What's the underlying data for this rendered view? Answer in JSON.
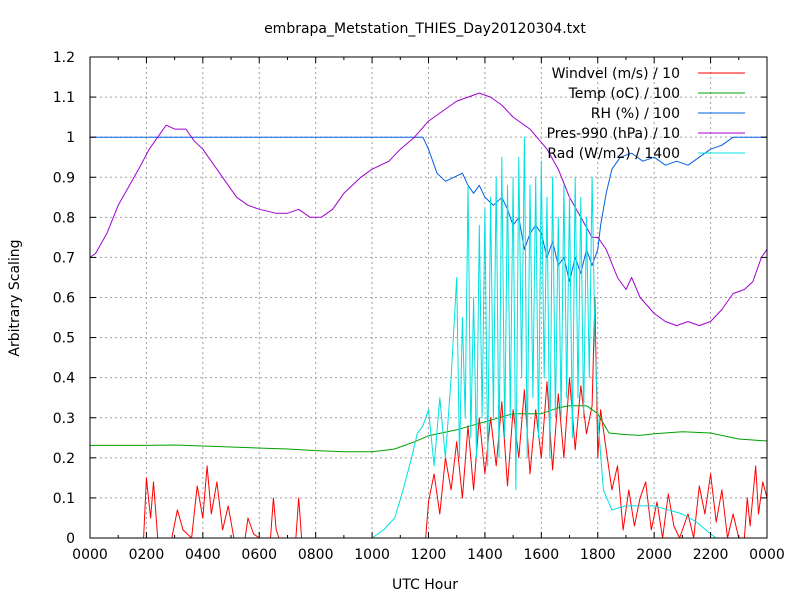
{
  "chart_data": {
    "type": "line",
    "title": "embrapa_Metstation_THIES_Day20120304.txt",
    "xlabel": "UTC Hour",
    "ylabel": "Arbitrary Scaling",
    "xlim": [
      0,
      2400
    ],
    "ylim": [
      0,
      1.2
    ],
    "x_tick_labels": [
      "0000",
      "0200",
      "0400",
      "0600",
      "0800",
      "1000",
      "1200",
      "1400",
      "1600",
      "1800",
      "2000",
      "2200",
      "0000"
    ],
    "y_ticks": [
      0,
      0.1,
      0.2,
      0.3,
      0.4,
      0.5,
      0.6,
      0.7,
      0.8,
      0.9,
      1,
      1.1,
      1.2
    ],
    "y_tick_labels": [
      "0",
      "0.1",
      "0.2",
      "0.3",
      "0.4",
      "0.5",
      "0.6",
      "0.7",
      "0.8",
      "0.9",
      "1",
      "1.1",
      "1.2"
    ],
    "grid": true,
    "legend_position": "top-right",
    "series": [
      {
        "name": "Windvel (m/s) / 10",
        "color": "#ff0000",
        "points": [
          [
            0,
            0
          ],
          [
            190,
            0
          ],
          [
            200,
            0.15
          ],
          [
            215,
            0.05
          ],
          [
            225,
            0.14
          ],
          [
            240,
            0
          ],
          [
            290,
            0
          ],
          [
            310,
            0.07
          ],
          [
            330,
            0.02
          ],
          [
            360,
            0
          ],
          [
            380,
            0.13
          ],
          [
            400,
            0.05
          ],
          [
            415,
            0.18
          ],
          [
            430,
            0.06
          ],
          [
            450,
            0.14
          ],
          [
            470,
            0.02
          ],
          [
            490,
            0.08
          ],
          [
            510,
            0
          ],
          [
            550,
            0
          ],
          [
            560,
            0.05
          ],
          [
            580,
            0.01
          ],
          [
            600,
            0
          ],
          [
            640,
            0
          ],
          [
            650,
            0.1
          ],
          [
            660,
            0.02
          ],
          [
            670,
            0
          ],
          [
            730,
            0
          ],
          [
            740,
            0.1
          ],
          [
            750,
            0
          ],
          [
            1190,
            0
          ],
          [
            1200,
            0.09
          ],
          [
            1220,
            0.16
          ],
          [
            1240,
            0.06
          ],
          [
            1260,
            0.2
          ],
          [
            1280,
            0.12
          ],
          [
            1300,
            0.24
          ],
          [
            1320,
            0.1
          ],
          [
            1340,
            0.28
          ],
          [
            1360,
            0.12
          ],
          [
            1380,
            0.3
          ],
          [
            1400,
            0.16
          ],
          [
            1420,
            0.3
          ],
          [
            1440,
            0.18
          ],
          [
            1460,
            0.34
          ],
          [
            1480,
            0.13
          ],
          [
            1500,
            0.32
          ],
          [
            1520,
            0.2
          ],
          [
            1540,
            0.37
          ],
          [
            1560,
            0.16
          ],
          [
            1580,
            0.32
          ],
          [
            1600,
            0.2
          ],
          [
            1620,
            0.39
          ],
          [
            1640,
            0.17
          ],
          [
            1660,
            0.36
          ],
          [
            1680,
            0.2
          ],
          [
            1700,
            0.4
          ],
          [
            1720,
            0.22
          ],
          [
            1740,
            0.38
          ],
          [
            1760,
            0.26
          ],
          [
            1780,
            0.33
          ],
          [
            1790,
            0.6
          ],
          [
            1800,
            0.2
          ],
          [
            1810,
            0.32
          ],
          [
            1830,
            0.22
          ],
          [
            1850,
            0.12
          ],
          [
            1870,
            0.18
          ],
          [
            1890,
            0.02
          ],
          [
            1910,
            0.12
          ],
          [
            1930,
            0.03
          ],
          [
            1950,
            0.1
          ],
          [
            1970,
            0.14
          ],
          [
            1990,
            0.02
          ],
          [
            2010,
            0.09
          ],
          [
            2030,
            0
          ],
          [
            2050,
            0.11
          ],
          [
            2070,
            0.03
          ],
          [
            2090,
            0
          ],
          [
            2120,
            0.06
          ],
          [
            2140,
            0
          ],
          [
            2160,
            0.13
          ],
          [
            2180,
            0.06
          ],
          [
            2200,
            0.16
          ],
          [
            2220,
            0.04
          ],
          [
            2240,
            0.12
          ],
          [
            2260,
            0
          ],
          [
            2280,
            0.06
          ],
          [
            2300,
            0
          ],
          [
            2320,
            0
          ],
          [
            2330,
            0.1
          ],
          [
            2340,
            0.03
          ],
          [
            2360,
            0.18
          ],
          [
            2370,
            0.06
          ],
          [
            2385,
            0.14
          ],
          [
            2400,
            0.1
          ]
        ]
      },
      {
        "name": "Temp (oC) / 100",
        "color": "#00a000",
        "points": [
          [
            0,
            0.231
          ],
          [
            200,
            0.231
          ],
          [
            300,
            0.232
          ],
          [
            500,
            0.227
          ],
          [
            700,
            0.222
          ],
          [
            800,
            0.218
          ],
          [
            900,
            0.215
          ],
          [
            1000,
            0.215
          ],
          [
            1080,
            0.222
          ],
          [
            1150,
            0.24
          ],
          [
            1200,
            0.255
          ],
          [
            1300,
            0.27
          ],
          [
            1400,
            0.29
          ],
          [
            1500,
            0.31
          ],
          [
            1560,
            0.31
          ],
          [
            1600,
            0.31
          ],
          [
            1660,
            0.325
          ],
          [
            1700,
            0.33
          ],
          [
            1760,
            0.33
          ],
          [
            1800,
            0.31
          ],
          [
            1840,
            0.262
          ],
          [
            1900,
            0.258
          ],
          [
            1950,
            0.256
          ],
          [
            2000,
            0.26
          ],
          [
            2100,
            0.265
          ],
          [
            2200,
            0.262
          ],
          [
            2300,
            0.247
          ],
          [
            2400,
            0.242
          ]
        ]
      },
      {
        "name": "RH (%) / 100",
        "color": "#0060e0",
        "points": [
          [
            0,
            1
          ],
          [
            1180,
            1
          ],
          [
            1200,
            0.97
          ],
          [
            1230,
            0.91
          ],
          [
            1260,
            0.89
          ],
          [
            1290,
            0.9
          ],
          [
            1320,
            0.91
          ],
          [
            1340,
            0.88
          ],
          [
            1360,
            0.86
          ],
          [
            1380,
            0.88
          ],
          [
            1400,
            0.85
          ],
          [
            1430,
            0.83
          ],
          [
            1460,
            0.85
          ],
          [
            1480,
            0.82
          ],
          [
            1500,
            0.78
          ],
          [
            1520,
            0.8
          ],
          [
            1540,
            0.72
          ],
          [
            1560,
            0.76
          ],
          [
            1580,
            0.78
          ],
          [
            1600,
            0.76
          ],
          [
            1620,
            0.7
          ],
          [
            1640,
            0.74
          ],
          [
            1660,
            0.68
          ],
          [
            1680,
            0.7
          ],
          [
            1700,
            0.64
          ],
          [
            1720,
            0.7
          ],
          [
            1740,
            0.66
          ],
          [
            1760,
            0.72
          ],
          [
            1780,
            0.68
          ],
          [
            1800,
            0.72
          ],
          [
            1810,
            0.78
          ],
          [
            1830,
            0.86
          ],
          [
            1850,
            0.92
          ],
          [
            1880,
            0.95
          ],
          [
            1920,
            0.96
          ],
          [
            1960,
            0.94
          ],
          [
            2000,
            0.95
          ],
          [
            2040,
            0.93
          ],
          [
            2080,
            0.94
          ],
          [
            2120,
            0.93
          ],
          [
            2160,
            0.95
          ],
          [
            2200,
            0.97
          ],
          [
            2240,
            0.98
          ],
          [
            2280,
            1
          ],
          [
            2320,
            1
          ],
          [
            2400,
            1
          ]
        ]
      },
      {
        "name": "Pres-990 (hPa) / 10",
        "color": "#a000d0",
        "points": [
          [
            0,
            0.7
          ],
          [
            20,
            0.71
          ],
          [
            60,
            0.76
          ],
          [
            100,
            0.83
          ],
          [
            140,
            0.88
          ],
          [
            180,
            0.93
          ],
          [
            210,
            0.97
          ],
          [
            240,
            1
          ],
          [
            270,
            1.03
          ],
          [
            300,
            1.02
          ],
          [
            340,
            1.02
          ],
          [
            370,
            0.99
          ],
          [
            400,
            0.97
          ],
          [
            440,
            0.93
          ],
          [
            480,
            0.89
          ],
          [
            520,
            0.85
          ],
          [
            560,
            0.83
          ],
          [
            600,
            0.82
          ],
          [
            660,
            0.81
          ],
          [
            700,
            0.81
          ],
          [
            740,
            0.82
          ],
          [
            780,
            0.8
          ],
          [
            820,
            0.8
          ],
          [
            860,
            0.82
          ],
          [
            900,
            0.86
          ],
          [
            960,
            0.9
          ],
          [
            1000,
            0.92
          ],
          [
            1060,
            0.94
          ],
          [
            1100,
            0.97
          ],
          [
            1150,
            1
          ],
          [
            1200,
            1.04
          ],
          [
            1260,
            1.07
          ],
          [
            1300,
            1.09
          ],
          [
            1340,
            1.1
          ],
          [
            1380,
            1.11
          ],
          [
            1420,
            1.1
          ],
          [
            1460,
            1.08
          ],
          [
            1500,
            1.05
          ],
          [
            1560,
            1.02
          ],
          [
            1620,
            0.97
          ],
          [
            1660,
            0.92
          ],
          [
            1700,
            0.85
          ],
          [
            1740,
            0.8
          ],
          [
            1780,
            0.75
          ],
          [
            1800,
            0.75
          ],
          [
            1830,
            0.72
          ],
          [
            1870,
            0.65
          ],
          [
            1900,
            0.62
          ],
          [
            1920,
            0.65
          ],
          [
            1950,
            0.6
          ],
          [
            2000,
            0.56
          ],
          [
            2040,
            0.54
          ],
          [
            2080,
            0.53
          ],
          [
            2120,
            0.54
          ],
          [
            2160,
            0.53
          ],
          [
            2200,
            0.54
          ],
          [
            2240,
            0.57
          ],
          [
            2280,
            0.61
          ],
          [
            2320,
            0.62
          ],
          [
            2350,
            0.64
          ],
          [
            2380,
            0.7
          ],
          [
            2400,
            0.72
          ]
        ]
      },
      {
        "name": "Rad (W/m2) / 1400",
        "color": "#00e0e0",
        "points": [
          [
            0,
            0
          ],
          [
            1000,
            0
          ],
          [
            1040,
            0.02
          ],
          [
            1080,
            0.05
          ],
          [
            1110,
            0.12
          ],
          [
            1140,
            0.2
          ],
          [
            1160,
            0.26
          ],
          [
            1180,
            0.28
          ],
          [
            1200,
            0.32
          ],
          [
            1220,
            0.18
          ],
          [
            1240,
            0.35
          ],
          [
            1260,
            0.2
          ],
          [
            1280,
            0.4
          ],
          [
            1300,
            0.65
          ],
          [
            1310,
            0.2
          ],
          [
            1320,
            0.55
          ],
          [
            1330,
            0.3
          ],
          [
            1340,
            0.88
          ],
          [
            1350,
            0.25
          ],
          [
            1360,
            0.6
          ],
          [
            1370,
            0.2
          ],
          [
            1380,
            0.78
          ],
          [
            1390,
            0.3
          ],
          [
            1400,
            0.82
          ],
          [
            1410,
            0.18
          ],
          [
            1420,
            0.85
          ],
          [
            1430,
            0.3
          ],
          [
            1440,
            0.9
          ],
          [
            1450,
            0.2
          ],
          [
            1460,
            0.95
          ],
          [
            1470,
            0.25
          ],
          [
            1480,
            0.88
          ],
          [
            1490,
            0.3
          ],
          [
            1500,
            0.9
          ],
          [
            1510,
            0.12
          ],
          [
            1520,
            0.95
          ],
          [
            1530,
            0.4
          ],
          [
            1540,
            1
          ],
          [
            1550,
            0.2
          ],
          [
            1560,
            0.88
          ],
          [
            1570,
            0.35
          ],
          [
            1580,
            0.9
          ],
          [
            1590,
            0.25
          ],
          [
            1600,
            0.94
          ],
          [
            1610,
            0.4
          ],
          [
            1620,
            0.85
          ],
          [
            1630,
            0.2
          ],
          [
            1640,
            0.9
          ],
          [
            1650,
            0.3
          ],
          [
            1660,
            0.8
          ],
          [
            1670,
            0.3
          ],
          [
            1680,
            0.88
          ],
          [
            1690,
            0.35
          ],
          [
            1700,
            0.85
          ],
          [
            1710,
            0.25
          ],
          [
            1720,
            0.9
          ],
          [
            1730,
            0.35
          ],
          [
            1740,
            0.85
          ],
          [
            1750,
            0.3
          ],
          [
            1760,
            0.8
          ],
          [
            1770,
            0.4
          ],
          [
            1780,
            0.9
          ],
          [
            1790,
            0.5
          ],
          [
            1800,
            0.3
          ],
          [
            1820,
            0.12
          ],
          [
            1850,
            0.07
          ],
          [
            1900,
            0.08
          ],
          [
            1950,
            0.08
          ],
          [
            2000,
            0.08
          ],
          [
            2050,
            0.07
          ],
          [
            2100,
            0.06
          ],
          [
            2150,
            0.04
          ],
          [
            2200,
            0.01
          ],
          [
            2220,
            0
          ],
          [
            2400,
            0
          ]
        ]
      }
    ]
  }
}
